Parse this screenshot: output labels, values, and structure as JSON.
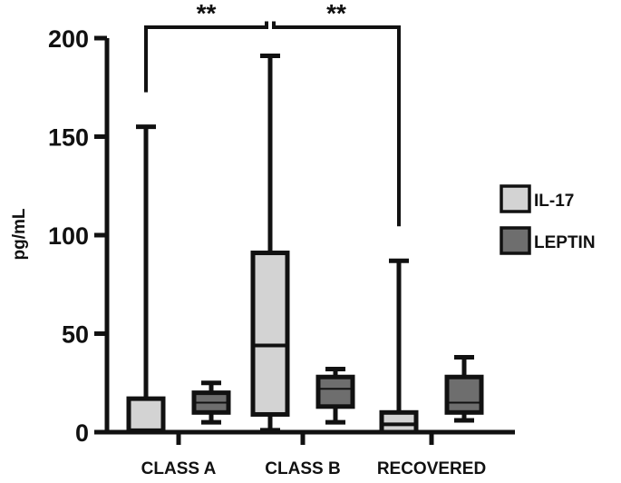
{
  "chart_data": {
    "type": "box",
    "title": "",
    "xlabel": "",
    "ylabel": "pg/mL",
    "ylim": [
      0,
      200
    ],
    "yticks": [
      0,
      50,
      100,
      150,
      200
    ],
    "categories": [
      "CLASS A",
      "CLASS B",
      "RECOVERED"
    ],
    "legend_position": "right",
    "series": [
      {
        "name": "IL-17",
        "color": "#d3d3d3",
        "boxes": [
          {
            "min": 0,
            "q1": 0,
            "median": 1,
            "q3": 17,
            "max": 155
          },
          {
            "min": 1,
            "q1": 9,
            "median": 44,
            "q3": 91,
            "max": 191
          },
          {
            "min": 0,
            "q1": 0,
            "median": 4,
            "q3": 10,
            "max": 87
          }
        ]
      },
      {
        "name": "LEPTIN",
        "color": "#6e6e6e",
        "boxes": [
          {
            "min": 5,
            "q1": 10,
            "median": 15,
            "q3": 20,
            "max": 25
          },
          {
            "min": 5,
            "q1": 13,
            "median": 22,
            "q3": 28,
            "max": 32
          },
          {
            "min": 6,
            "q1": 10,
            "median": 15,
            "q3": 28,
            "max": 38
          }
        ]
      }
    ],
    "annotations": [
      {
        "text": "**",
        "from_category": "CLASS A",
        "to_category": "CLASS B",
        "series": "IL-17"
      },
      {
        "text": "**",
        "from_category": "CLASS B",
        "to_category": "RECOVERED",
        "series": "IL-17"
      }
    ]
  }
}
